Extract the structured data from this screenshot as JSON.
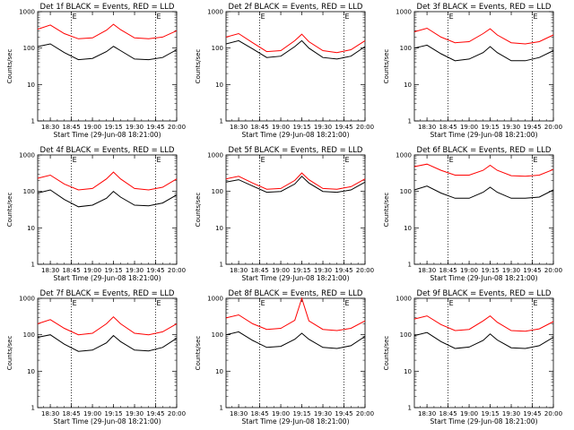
{
  "figure": {
    "xlabel": "Start Time (29-Jun-08 18:21:00)",
    "ylabel": "Counts/sec",
    "event_marker": "E",
    "colors": {
      "events": "#000000",
      "lld": "#ff0000"
    }
  },
  "chart_data": [
    {
      "type": "line",
      "title": "Det 1f BLACK = Events, RED = LLD",
      "dotted_x": [
        "18:45",
        "19:45"
      ],
      "x_ticks": [
        "18:30",
        "18:45",
        "19:00",
        "19:15",
        "19:30",
        "19:45",
        "20:00"
      ],
      "y_ticks": [
        "1",
        "10",
        "100",
        "1000"
      ],
      "ylim": [
        1,
        1000
      ],
      "y_scale": "log",
      "xlim": [
        "18:21",
        "20:00"
      ],
      "series": [
        {
          "name": "BLACK = Events",
          "x": [
            "18:21",
            "18:30",
            "18:40",
            "18:50",
            "19:00",
            "19:10",
            "19:15",
            "19:20",
            "19:30",
            "19:40",
            "19:50",
            "20:00"
          ],
          "values": [
            110,
            130,
            75,
            48,
            52,
            80,
            112,
            85,
            50,
            48,
            55,
            90
          ]
        },
        {
          "name": "RED = LLD",
          "x": [
            "18:21",
            "18:30",
            "18:40",
            "18:50",
            "19:00",
            "19:10",
            "19:15",
            "19:20",
            "19:30",
            "19:40",
            "19:50",
            "20:00"
          ],
          "values": [
            330,
            430,
            250,
            180,
            190,
            310,
            450,
            320,
            190,
            180,
            200,
            300
          ]
        }
      ]
    },
    {
      "type": "line",
      "title": "Det 2f BLACK = Events, RED = LLD",
      "dotted_x": [
        "18:45",
        "19:45"
      ],
      "x_ticks": [
        "18:30",
        "18:45",
        "19:00",
        "19:15",
        "19:30",
        "19:45",
        "20:00"
      ],
      "y_ticks": [
        "1",
        "10",
        "100",
        "1000"
      ],
      "ylim": [
        1,
        1000
      ],
      "y_scale": "log",
      "xlim": [
        "18:21",
        "20:00"
      ],
      "series": [
        {
          "name": "BLACK = Events",
          "x": [
            "18:21",
            "18:30",
            "18:40",
            "18:50",
            "19:00",
            "19:10",
            "19:15",
            "19:20",
            "19:30",
            "19:40",
            "19:50",
            "20:00"
          ],
          "values": [
            130,
            160,
            95,
            55,
            60,
            110,
            160,
            100,
            55,
            50,
            60,
            110
          ]
        },
        {
          "name": "RED = LLD",
          "x": [
            "18:21",
            "18:30",
            "18:40",
            "18:50",
            "19:00",
            "19:10",
            "19:15",
            "19:20",
            "19:30",
            "19:40",
            "19:50",
            "20:00"
          ],
          "values": [
            200,
            250,
            140,
            80,
            85,
            160,
            240,
            150,
            85,
            75,
            90,
            160
          ]
        }
      ]
    },
    {
      "type": "line",
      "title": "Det 3f BLACK = Events, RED = LLD",
      "dotted_x": [
        "18:45",
        "19:45"
      ],
      "x_ticks": [
        "18:30",
        "18:45",
        "19:00",
        "19:15",
        "19:30",
        "19:45",
        "20:00"
      ],
      "y_ticks": [
        "1",
        "10",
        "100",
        "1000"
      ],
      "ylim": [
        1,
        1000
      ],
      "y_scale": "log",
      "xlim": [
        "18:21",
        "20:00"
      ],
      "series": [
        {
          "name": "BLACK = Events",
          "x": [
            "18:21",
            "18:30",
            "18:40",
            "18:50",
            "19:00",
            "19:10",
            "19:15",
            "19:20",
            "19:30",
            "19:40",
            "19:50",
            "20:00"
          ],
          "values": [
            100,
            120,
            70,
            45,
            50,
            75,
            110,
            75,
            45,
            45,
            55,
            85
          ]
        },
        {
          "name": "RED = LLD",
          "x": [
            "18:21",
            "18:30",
            "18:40",
            "18:50",
            "19:00",
            "19:10",
            "19:15",
            "19:20",
            "19:30",
            "19:40",
            "19:50",
            "20:00"
          ],
          "values": [
            280,
            350,
            200,
            140,
            150,
            250,
            340,
            230,
            140,
            130,
            150,
            230
          ]
        }
      ]
    },
    {
      "type": "line",
      "title": "Det 4f BLACK = Events, RED = LLD",
      "dotted_x": [
        "18:45",
        "19:45"
      ],
      "x_ticks": [
        "18:30",
        "18:45",
        "19:00",
        "19:15",
        "19:30",
        "19:45",
        "20:00"
      ],
      "y_ticks": [
        "1",
        "10",
        "100",
        "1000"
      ],
      "ylim": [
        1,
        1000
      ],
      "y_scale": "log",
      "xlim": [
        "18:21",
        "20:00"
      ],
      "series": [
        {
          "name": "BLACK = Events",
          "x": [
            "18:21",
            "18:30",
            "18:40",
            "18:50",
            "19:00",
            "19:10",
            "19:15",
            "19:20",
            "19:30",
            "19:40",
            "19:50",
            "20:00"
          ],
          "values": [
            90,
            110,
            60,
            38,
            42,
            65,
            100,
            70,
            42,
            40,
            48,
            80
          ]
        },
        {
          "name": "RED = LLD",
          "x": [
            "18:21",
            "18:30",
            "18:40",
            "18:50",
            "19:00",
            "19:10",
            "19:15",
            "19:20",
            "19:30",
            "19:40",
            "19:50",
            "20:00"
          ],
          "values": [
            230,
            280,
            160,
            110,
            120,
            220,
            340,
            220,
            120,
            110,
            130,
            220
          ]
        }
      ]
    },
    {
      "type": "line",
      "title": "Det 5f BLACK = Events, RED = LLD",
      "dotted_x": [
        "18:45",
        "19:45"
      ],
      "x_ticks": [
        "18:30",
        "18:45",
        "19:00",
        "19:15",
        "19:30",
        "19:45",
        "20:00"
      ],
      "y_ticks": [
        "1",
        "10",
        "100",
        "1000"
      ],
      "ylim": [
        1,
        1000
      ],
      "y_scale": "log",
      "xlim": [
        "18:21",
        "20:00"
      ],
      "series": [
        {
          "name": "BLACK = Events",
          "x": [
            "18:21",
            "18:30",
            "18:40",
            "18:50",
            "19:00",
            "19:10",
            "19:15",
            "19:20",
            "19:30",
            "19:40",
            "19:50",
            "20:00"
          ],
          "values": [
            180,
            210,
            140,
            95,
            100,
            160,
            260,
            170,
            100,
            95,
            110,
            180
          ]
        },
        {
          "name": "RED = LLD",
          "x": [
            "18:21",
            "18:30",
            "18:40",
            "18:50",
            "19:00",
            "19:10",
            "19:15",
            "19:20",
            "19:30",
            "19:40",
            "19:50",
            "20:00"
          ],
          "values": [
            220,
            260,
            170,
            115,
            120,
            200,
            320,
            210,
            120,
            115,
            135,
            220
          ]
        }
      ]
    },
    {
      "type": "line",
      "title": "Det 6f BLACK = Events, RED = LLD",
      "dotted_x": [
        "18:45",
        "19:45"
      ],
      "x_ticks": [
        "18:30",
        "18:45",
        "19:00",
        "19:15",
        "19:30",
        "19:45",
        "20:00"
      ],
      "y_ticks": [
        "1",
        "10",
        "100",
        "1000"
      ],
      "ylim": [
        1,
        1000
      ],
      "y_scale": "log",
      "xlim": [
        "18:21",
        "20:00"
      ],
      "series": [
        {
          "name": "BLACK = Events",
          "x": [
            "18:21",
            "18:30",
            "18:40",
            "18:50",
            "19:00",
            "19:10",
            "19:15",
            "19:20",
            "19:30",
            "19:40",
            "19:50",
            "20:00"
          ],
          "values": [
            110,
            140,
            90,
            65,
            65,
            95,
            130,
            95,
            65,
            65,
            70,
            110
          ]
        },
        {
          "name": "RED = LLD",
          "x": [
            "18:21",
            "18:30",
            "18:40",
            "18:50",
            "19:00",
            "19:10",
            "19:15",
            "19:20",
            "19:30",
            "19:40",
            "19:50",
            "20:00"
          ],
          "values": [
            480,
            560,
            380,
            280,
            280,
            380,
            520,
            380,
            270,
            260,
            280,
            400
          ]
        }
      ]
    },
    {
      "type": "line",
      "title": "Det 7f BLACK = Events, RED = LLD",
      "dotted_x": [
        "18:45",
        "19:45"
      ],
      "x_ticks": [
        "18:30",
        "18:45",
        "19:00",
        "19:15",
        "19:30",
        "19:45",
        "20:00"
      ],
      "y_ticks": [
        "1",
        "10",
        "100",
        "1000"
      ],
      "ylim": [
        1,
        1000
      ],
      "y_scale": "log",
      "xlim": [
        "18:21",
        "20:00"
      ],
      "series": [
        {
          "name": "BLACK = Events",
          "x": [
            "18:21",
            "18:30",
            "18:40",
            "18:50",
            "19:00",
            "19:10",
            "19:15",
            "19:20",
            "19:30",
            "19:40",
            "19:50",
            "20:00"
          ],
          "values": [
            85,
            100,
            55,
            35,
            38,
            60,
            95,
            65,
            38,
            36,
            45,
            80
          ]
        },
        {
          "name": "RED = LLD",
          "x": [
            "18:21",
            "18:30",
            "18:40",
            "18:50",
            "19:00",
            "19:10",
            "19:15",
            "19:20",
            "19:30",
            "19:40",
            "19:50",
            "20:00"
          ],
          "values": [
            200,
            260,
            150,
            100,
            110,
            200,
            310,
            200,
            110,
            100,
            120,
            200
          ]
        }
      ]
    },
    {
      "type": "line",
      "title": "Det 8f BLACK = Events, RED = LLD",
      "dotted_x": [
        "18:45",
        "19:45"
      ],
      "x_ticks": [
        "18:30",
        "18:45",
        "19:00",
        "19:15",
        "19:30",
        "19:45",
        "20:00"
      ],
      "y_ticks": [
        "1",
        "10",
        "100",
        "1000"
      ],
      "ylim": [
        1,
        1000
      ],
      "y_scale": "log",
      "xlim": [
        "18:21",
        "20:00"
      ],
      "series": [
        {
          "name": "BLACK = Events",
          "x": [
            "18:21",
            "18:30",
            "18:40",
            "18:50",
            "19:00",
            "19:10",
            "19:15",
            "19:20",
            "19:30",
            "19:40",
            "19:50",
            "20:00"
          ],
          "values": [
            100,
            120,
            70,
            45,
            48,
            75,
            110,
            75,
            45,
            42,
            50,
            90
          ]
        },
        {
          "name": "RED = LLD",
          "x": [
            "18:21",
            "18:30",
            "18:40",
            "18:50",
            "19:00",
            "19:10",
            "19:15",
            "19:20",
            "19:30",
            "19:40",
            "19:50",
            "20:00"
          ],
          "values": [
            290,
            350,
            200,
            140,
            150,
            250,
            1000,
            240,
            140,
            130,
            150,
            240
          ]
        }
      ]
    },
    {
      "type": "line",
      "title": "Det 9f BLACK = Events, RED = LLD",
      "dotted_x": [
        "18:45",
        "19:45"
      ],
      "x_ticks": [
        "18:30",
        "18:45",
        "19:00",
        "19:15",
        "19:30",
        "19:45",
        "20:00"
      ],
      "y_ticks": [
        "1",
        "10",
        "100",
        "1000"
      ],
      "ylim": [
        1,
        1000
      ],
      "y_scale": "log",
      "xlim": [
        "18:21",
        "20:00"
      ],
      "series": [
        {
          "name": "BLACK = Events",
          "x": [
            "18:21",
            "18:30",
            "18:40",
            "18:50",
            "19:00",
            "19:10",
            "19:15",
            "19:20",
            "19:30",
            "19:40",
            "19:50",
            "20:00"
          ],
          "values": [
            95,
            115,
            65,
            42,
            46,
            70,
            105,
            72,
            44,
            42,
            50,
            85
          ]
        },
        {
          "name": "RED = LLD",
          "x": [
            "18:21",
            "18:30",
            "18:40",
            "18:50",
            "19:00",
            "19:10",
            "19:15",
            "19:20",
            "19:30",
            "19:40",
            "19:50",
            "20:00"
          ],
          "values": [
            270,
            330,
            190,
            130,
            140,
            240,
            330,
            220,
            130,
            125,
            145,
            230
          ]
        }
      ]
    }
  ]
}
